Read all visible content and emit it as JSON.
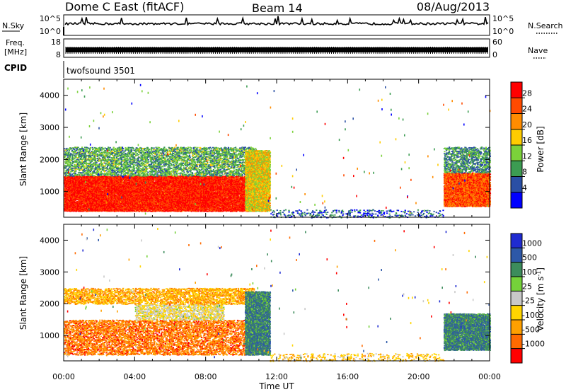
{
  "header": {
    "station": "Dome C East (fitACF)",
    "beam": "Beam 14",
    "date": "08/Aug/2013"
  },
  "side_labels": {
    "nsky": "N.Sky",
    "freq_line1": "Freq.",
    "freq_line2": "[MHz]",
    "cpid": "CPID",
    "nsearch": "N.Search",
    "nave": "Nave"
  },
  "cpid_text": "twofsound 3501",
  "axes": {
    "xlabel": "Time UT",
    "xticks": [
      "00:00",
      "04:00",
      "08:00",
      "12:00",
      "16:00",
      "20:00",
      "00:00"
    ],
    "ylabel_main": "Slant Range",
    "ylabel_unit": "[km]",
    "yticks": [
      "1000",
      "2000",
      "3000",
      "4000"
    ],
    "noise_left_ticks": [
      "10^5",
      "10^0"
    ],
    "noise_right_ticks": [
      "10^5",
      "10^0"
    ],
    "freq_left_ticks": [
      "18",
      "8"
    ],
    "freq_right_ticks": [
      "60",
      "0"
    ]
  },
  "power_scale": {
    "label": "Power",
    "unit": "[dB]",
    "ticks": [
      "28",
      "24",
      "20",
      "16",
      "12",
      "8",
      "4"
    ],
    "colors": [
      "#ff0000",
      "#ff4a00",
      "#ff8c00",
      "#ffcc00",
      "#7bd13a",
      "#3c9c52",
      "#2a4fa5",
      "#0000ff"
    ]
  },
  "velocity_scale": {
    "label": "Velocity",
    "unit": "[m s",
    "unit_sup": "-1",
    "unit_end": "]",
    "ticks": [
      "1000",
      "500",
      "100",
      "25",
      "-25",
      "-100",
      "-500",
      "-1000"
    ],
    "colors": [
      "#1f2bd1",
      "#2d58a8",
      "#3c8c5c",
      "#75d13a",
      "#c8c8c8",
      "#ffd500",
      "#ffa000",
      "#ff6a00",
      "#ff0000"
    ]
  },
  "chart_data": [
    {
      "type": "heatmap",
      "panel": "power",
      "xlabel": "Time UT",
      "ylabel": "Slant Range [km]",
      "xlim": [
        0,
        24
      ],
      "ylim": [
        200,
        4500
      ],
      "colorbar": "Power [dB]",
      "regions": [
        {
          "t0": 0.0,
          "t1": 10.8,
          "r0": 400,
          "r1": 1500,
          "level": 0.92
        },
        {
          "t0": 0.0,
          "t1": 10.8,
          "r0": 1500,
          "r1": 2400,
          "level": 0.35
        },
        {
          "t0": 10.2,
          "t1": 11.6,
          "r0": 400,
          "r1": 2300,
          "level": 0.55
        },
        {
          "t0": 21.4,
          "t1": 24.0,
          "r0": 550,
          "r1": 1600,
          "level": 0.8
        },
        {
          "t0": 21.4,
          "t1": 24.0,
          "r0": 1600,
          "r1": 2400,
          "level": 0.3
        },
        {
          "t0": 11.6,
          "t1": 21.4,
          "r0": 200,
          "r1": 450,
          "level": 0.2
        }
      ]
    },
    {
      "type": "heatmap",
      "panel": "velocity",
      "xlabel": "Time UT",
      "ylabel": "Slant Range [km]",
      "xlim": [
        0,
        24
      ],
      "ylim": [
        200,
        4500
      ],
      "colorbar": "Velocity [m s-1]",
      "regions": [
        {
          "t0": 0.0,
          "t1": 10.8,
          "r0": 400,
          "r1": 1500,
          "level": 0.2
        },
        {
          "t0": 4.0,
          "t1": 9.0,
          "r0": 1500,
          "r1": 2000,
          "level": 0.45
        },
        {
          "t0": 0.0,
          "t1": 10.8,
          "r0": 2000,
          "r1": 2500,
          "level": 0.3
        },
        {
          "t0": 10.2,
          "t1": 11.6,
          "r0": 400,
          "r1": 2400,
          "level": 0.75
        },
        {
          "t0": 21.4,
          "t1": 24.0,
          "r0": 550,
          "r1": 1700,
          "level": 0.75
        },
        {
          "t0": 11.6,
          "t1": 21.4,
          "r0": 200,
          "r1": 450,
          "level": 0.35
        }
      ]
    }
  ]
}
